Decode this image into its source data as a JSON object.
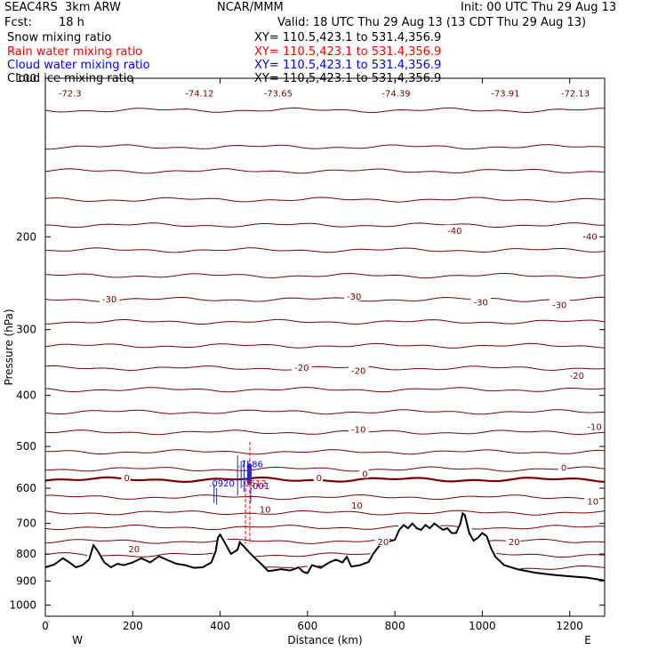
{
  "header": {
    "model": "SEAC4RS  3km ARW",
    "center": "NCAR/MMM",
    "init": "Init: 00 UTC Thu 29 Aug 13",
    "fcst_label": "Fcst:",
    "fcst_value": "18 h",
    "valid": "Valid: 18 UTC Thu 29 Aug 13 (13 CDT Thu 29 Aug 13)"
  },
  "fields": [
    {
      "name": "Snow mixing ratio",
      "xy": "XY= 110.5,423.1 to 531.4,356.9",
      "color": "#000000"
    },
    {
      "name": "Rain water mixing ratio",
      "xy": "XY= 110.5,423.1 to 531.4,356.9",
      "color": "#ff0000"
    },
    {
      "name": "Cloud water mixing ratio",
      "xy": "XY= 110.5,423.1 to 531.4,356.9",
      "color": "#0000ff"
    },
    {
      "name": "Cloud ice mixing ratio",
      "xy": "XY= 110.5,423.1 to 531.4,356.9",
      "color": "#000000"
    }
  ],
  "chart_data": {
    "type": "cross-section",
    "xlabel": "Distance (km)",
    "ylabel": "Pressure (hPa)",
    "xlim": [
      0,
      1280
    ],
    "ylim": [
      1050,
      100
    ],
    "y_log": true,
    "x_ticks": [
      "0",
      "200",
      "400",
      "600",
      "800",
      "1000",
      "1200"
    ],
    "x_tick_values": [
      0,
      200,
      400,
      600,
      800,
      1000,
      1200
    ],
    "y_ticks": [
      "200",
      "300",
      "400",
      "500",
      "600",
      "700",
      "800",
      "900",
      "1000"
    ],
    "y_tick_values": [
      200,
      300,
      400,
      500,
      600,
      700,
      800,
      900,
      1000
    ],
    "y_top_label": "100",
    "x_end_labels": {
      "left": "W",
      "right": "E"
    },
    "temperature_contours": [
      {
        "p": 115,
        "label": null
      },
      {
        "p": 135,
        "label": null
      },
      {
        "p": 150,
        "label": null
      },
      {
        "p": 170,
        "label": null
      },
      {
        "p": 190,
        "label": "-40"
      },
      {
        "p": 212,
        "label": null
      },
      {
        "p": 237,
        "label": null
      },
      {
        "p": 263,
        "label": "-30"
      },
      {
        "p": 290,
        "label": null
      },
      {
        "p": 322,
        "label": null
      },
      {
        "p": 355,
        "label": "-20"
      },
      {
        "p": 390,
        "label": null
      },
      {
        "p": 430,
        "label": null
      },
      {
        "p": 470,
        "label": "-10"
      },
      {
        "p": 512,
        "label": null
      },
      {
        "p": 552,
        "label": null
      },
      {
        "p": 578,
        "label": "0"
      },
      {
        "p": 624,
        "label": null
      },
      {
        "p": 668,
        "label": "10"
      },
      {
        "p": 712,
        "label": null
      },
      {
        "p": 757,
        "label": null
      },
      {
        "p": 803,
        "label": "20"
      },
      {
        "p": 850,
        "label": null
      },
      {
        "p": 890,
        "label": null
      }
    ],
    "contour_labels": [
      {
        "x": 30,
        "p": 107,
        "text": "-72.3"
      },
      {
        "x": 320,
        "p": 107,
        "text": "-74.12"
      },
      {
        "x": 500,
        "p": 107,
        "text": "-73.65"
      },
      {
        "x": 770,
        "p": 107,
        "text": "-74.39"
      },
      {
        "x": 1020,
        "p": 107,
        "text": "-73.91"
      },
      {
        "x": 1180,
        "p": 107,
        "text": "-72.13"
      },
      {
        "x": 920,
        "p": 195,
        "text": "-40"
      },
      {
        "x": 1230,
        "p": 200,
        "text": "-40"
      },
      {
        "x": 130,
        "p": 263,
        "text": "-30"
      },
      {
        "x": 690,
        "p": 260,
        "text": "-30"
      },
      {
        "x": 980,
        "p": 267,
        "text": "-30"
      },
      {
        "x": 1160,
        "p": 270,
        "text": "-30"
      },
      {
        "x": 570,
        "p": 355,
        "text": "-20"
      },
      {
        "x": 700,
        "p": 360,
        "text": "-20"
      },
      {
        "x": 1200,
        "p": 368,
        "text": "-20"
      },
      {
        "x": 700,
        "p": 465,
        "text": "-10"
      },
      {
        "x": 1240,
        "p": 460,
        "text": "-10"
      },
      {
        "x": 180,
        "p": 575,
        "text": "0"
      },
      {
        "x": 620,
        "p": 575,
        "text": "0"
      },
      {
        "x": 725,
        "p": 565,
        "text": "0"
      },
      {
        "x": 1180,
        "p": 550,
        "text": "0"
      },
      {
        "x": 490,
        "p": 660,
        "text": "10"
      },
      {
        "x": 700,
        "p": 648,
        "text": "10"
      },
      {
        "x": 1240,
        "p": 637,
        "text": "10"
      },
      {
        "x": 760,
        "p": 760,
        "text": "20"
      },
      {
        "x": 190,
        "p": 785,
        "text": "20"
      },
      {
        "x": 1060,
        "p": 760,
        "text": "20"
      }
    ],
    "terrain": [
      [
        0,
        848
      ],
      [
        20,
        838
      ],
      [
        40,
        815
      ],
      [
        55,
        830
      ],
      [
        70,
        848
      ],
      [
        85,
        840
      ],
      [
        100,
        820
      ],
      [
        110,
        770
      ],
      [
        120,
        790
      ],
      [
        135,
        830
      ],
      [
        150,
        848
      ],
      [
        165,
        835
      ],
      [
        180,
        840
      ],
      [
        200,
        830
      ],
      [
        220,
        815
      ],
      [
        240,
        830
      ],
      [
        260,
        808
      ],
      [
        280,
        822
      ],
      [
        300,
        835
      ],
      [
        320,
        840
      ],
      [
        340,
        850
      ],
      [
        360,
        848
      ],
      [
        380,
        830
      ],
      [
        390,
        790
      ],
      [
        395,
        745
      ],
      [
        400,
        735
      ],
      [
        410,
        760
      ],
      [
        425,
        800
      ],
      [
        440,
        785
      ],
      [
        445,
        760
      ],
      [
        455,
        775
      ],
      [
        470,
        800
      ],
      [
        480,
        815
      ],
      [
        490,
        830
      ],
      [
        500,
        845
      ],
      [
        510,
        862
      ],
      [
        520,
        860
      ],
      [
        540,
        855
      ],
      [
        560,
        860
      ],
      [
        580,
        848
      ],
      [
        590,
        865
      ],
      [
        600,
        870
      ],
      [
        610,
        840
      ],
      [
        630,
        850
      ],
      [
        650,
        830
      ],
      [
        665,
        820
      ],
      [
        680,
        830
      ],
      [
        690,
        810
      ],
      [
        700,
        845
      ],
      [
        720,
        840
      ],
      [
        740,
        828
      ],
      [
        750,
        800
      ],
      [
        760,
        780
      ],
      [
        770,
        762
      ],
      [
        780,
        760
      ],
      [
        800,
        752
      ],
      [
        810,
        720
      ],
      [
        820,
        705
      ],
      [
        830,
        715
      ],
      [
        840,
        700
      ],
      [
        850,
        715
      ],
      [
        860,
        720
      ],
      [
        870,
        705
      ],
      [
        880,
        715
      ],
      [
        890,
        700
      ],
      [
        900,
        710
      ],
      [
        910,
        720
      ],
      [
        920,
        715
      ],
      [
        930,
        730
      ],
      [
        940,
        730
      ],
      [
        950,
        700
      ],
      [
        955,
        670
      ],
      [
        960,
        675
      ],
      [
        970,
        730
      ],
      [
        980,
        755
      ],
      [
        990,
        745
      ],
      [
        1000,
        730
      ],
      [
        1010,
        740
      ],
      [
        1020,
        780
      ],
      [
        1030,
        810
      ],
      [
        1050,
        840
      ],
      [
        1080,
        855
      ],
      [
        1120,
        868
      ],
      [
        1160,
        876
      ],
      [
        1200,
        882
      ],
      [
        1240,
        887
      ],
      [
        1280,
        898
      ]
    ],
    "cloud_annotations": [
      {
        "x": 375,
        "p": 595,
        "text": ".0920",
        "color": "#0000ff"
      },
      {
        "x": 440,
        "p": 548,
        "text": ".7586",
        "color": "#0000ff"
      },
      {
        "x": 448,
        "p": 595,
        "text": ".0612",
        "color": "#ff0000"
      },
      {
        "x": 468,
        "p": 602,
        "text": ".001",
        "color": "#0000ff"
      }
    ]
  }
}
